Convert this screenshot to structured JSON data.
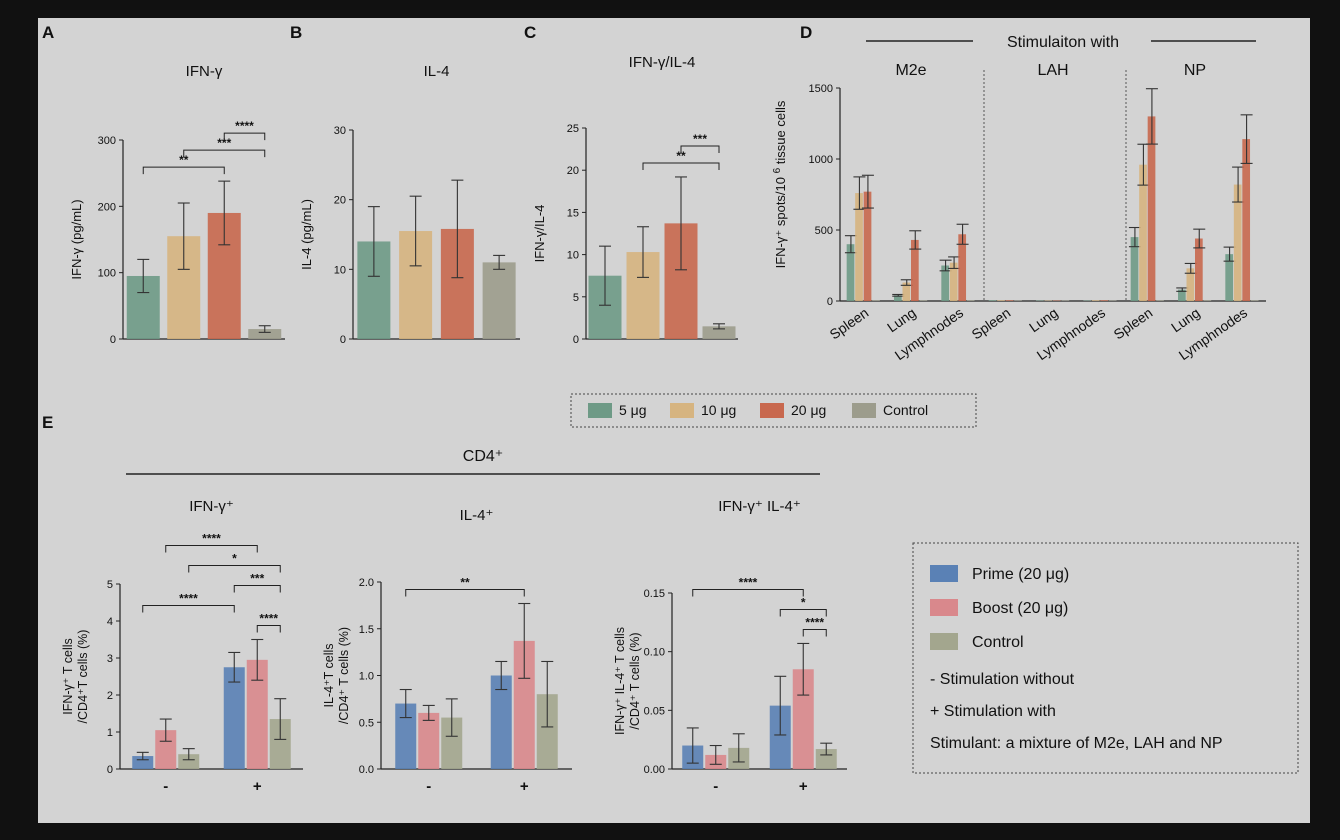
{
  "colors": {
    "g5": "#6e9a86",
    "g10": "#d6b480",
    "g20": "#c8684e",
    "gctrl": "#9c9c8c",
    "prime": "#5a81b5",
    "boost": "#d9888c",
    "ctrl2": "#a3a68e"
  },
  "panel_letters": [
    "A",
    "B",
    "C",
    "D",
    "E"
  ],
  "legend_top": {
    "items": [
      {
        "label": "5 μg",
        "color": "#6e9a86"
      },
      {
        "label": "10 μg",
        "color": "#d6b480"
      },
      {
        "label": "20 μg",
        "color": "#c8684e"
      },
      {
        "label": "Control",
        "color": "#9c9c8c"
      }
    ]
  },
  "legend_bottom": {
    "items": [
      {
        "label": "Prime (20 μg)",
        "color": "#5a81b5"
      },
      {
        "label": "Boost (20 μg)",
        "color": "#d9888c"
      },
      {
        "label": "Control",
        "color": "#a3a68e"
      }
    ],
    "notes": [
      "-  Stimulation without",
      "+ Stimulation with",
      "Stimulant: a mixture of M2e, LAH and NP"
    ]
  },
  "chart_data": [
    {
      "id": "A",
      "type": "bar",
      "title": "IFN-γ",
      "ylabel": "IFN-γ (pg/mL)",
      "ylim": [
        0,
        300
      ],
      "yticks": [
        0,
        100,
        200,
        300
      ],
      "categories": [
        "5 μg",
        "10 μg",
        "20 μg",
        "Control"
      ],
      "values": [
        95,
        155,
        190,
        15
      ],
      "errors": [
        25,
        50,
        48,
        5
      ],
      "significance": [
        {
          "a": 0,
          "b": 2,
          "label": "**"
        },
        {
          "a": 1,
          "b": 3,
          "label": "***"
        },
        {
          "a": 2,
          "b": 3,
          "label": "****"
        }
      ]
    },
    {
      "id": "B",
      "type": "bar",
      "title": "IL-4",
      "ylabel": "IL-4 (pg/mL)",
      "ylim": [
        0,
        30
      ],
      "yticks": [
        0,
        10,
        20,
        30
      ],
      "categories": [
        "5 μg",
        "10 μg",
        "20 μg",
        "Control"
      ],
      "values": [
        14,
        15.5,
        15.8,
        11
      ],
      "errors": [
        5,
        5,
        7,
        1
      ]
    },
    {
      "id": "C",
      "type": "bar",
      "title": "IFN-γ/IL-4",
      "ylabel": "IFN-γ/IL-4",
      "ylim": [
        0,
        25
      ],
      "yticks": [
        0,
        5,
        10,
        15,
        20,
        25
      ],
      "categories": [
        "5 μg",
        "10 μg",
        "20 μg",
        "Control"
      ],
      "values": [
        7.5,
        10.3,
        13.7,
        1.5
      ],
      "errors": [
        3.5,
        3,
        5.5,
        0.3
      ],
      "significance": [
        {
          "a": 1,
          "b": 3,
          "label": "**"
        },
        {
          "a": 2,
          "b": 3,
          "label": "***"
        }
      ]
    },
    {
      "id": "D",
      "type": "bar",
      "ylabel": "IFN-γ⁺ spots/10",
      "ylabel_sup": "6",
      "ylabel_tail": "tissue cells",
      "ylim": [
        0,
        1500
      ],
      "yticks": [
        0,
        500,
        1000,
        1500
      ],
      "header": "Stimulaiton with",
      "stimulants": [
        "M2e",
        "LAH",
        "NP"
      ],
      "tissues": [
        "Spleen",
        "Lung",
        "Lymphnodes"
      ],
      "series": [
        {
          "name": "5 μg",
          "values": [
            400,
            40,
            250,
            5,
            3,
            3,
            450,
            80,
            330
          ]
        },
        {
          "name": "10 μg",
          "values": [
            760,
            130,
            270,
            5,
            3,
            5,
            960,
            230,
            820
          ]
        },
        {
          "name": "20 μg",
          "values": [
            770,
            430,
            470,
            5,
            3,
            5,
            1300,
            440,
            1140
          ]
        },
        {
          "name": "Control",
          "values": [
            5,
            5,
            5,
            3,
            3,
            3,
            5,
            5,
            5
          ]
        }
      ]
    },
    {
      "id": "E1",
      "type": "bar",
      "title": "IFN-γ⁺",
      "ylabel": [
        "IFN-γ⁺ T cells",
        "/CD4⁺T cells (%)"
      ],
      "ylim": [
        0,
        5
      ],
      "yticks": [
        0,
        1,
        2,
        3,
        4,
        5
      ],
      "categories": [
        "-",
        "+"
      ],
      "series": [
        {
          "name": "Prime (20 μg)",
          "values": [
            0.35,
            2.75
          ],
          "errors": [
            0.1,
            0.4
          ]
        },
        {
          "name": "Boost (20 μg)",
          "values": [
            1.05,
            2.95
          ],
          "errors": [
            0.3,
            0.55
          ]
        },
        {
          "name": "Control",
          "values": [
            0.4,
            1.35
          ],
          "errors": [
            0.15,
            0.55
          ]
        }
      ],
      "significance": [
        {
          "a": [
            0,
            1
          ],
          "b": [
            1,
            1
          ],
          "label": "****"
        },
        {
          "a": [
            0,
            2
          ],
          "b": [
            1,
            2
          ],
          "label": "*"
        },
        {
          "a": [
            1,
            0
          ],
          "b": [
            1,
            2
          ],
          "label": "***"
        },
        {
          "a": [
            0,
            0
          ],
          "b": [
            1,
            0
          ],
          "label": "****"
        },
        {
          "a": [
            1,
            1
          ],
          "b": [
            1,
            2
          ],
          "label": "****"
        }
      ]
    },
    {
      "id": "E2",
      "type": "bar",
      "title": "IL-4⁺",
      "ylabel": [
        "IL-4⁺T cells",
        "/CD4⁺ T cells (%)"
      ],
      "ylim": [
        0,
        2.0
      ],
      "yticks": [
        0.0,
        0.5,
        1.0,
        1.5,
        2.0
      ],
      "categories": [
        "-",
        "+"
      ],
      "series": [
        {
          "name": "Prime (20 μg)",
          "values": [
            0.7,
            1.0
          ],
          "errors": [
            0.15,
            0.15
          ]
        },
        {
          "name": "Boost (20 μg)",
          "values": [
            0.6,
            1.37
          ],
          "errors": [
            0.08,
            0.4
          ]
        },
        {
          "name": "Control",
          "values": [
            0.55,
            0.8
          ],
          "errors": [
            0.2,
            0.35
          ]
        }
      ],
      "significance": [
        {
          "a": [
            0,
            0
          ],
          "b": [
            1,
            1
          ],
          "label": "**"
        }
      ]
    },
    {
      "id": "E3",
      "type": "bar",
      "title": "IFN-γ⁺ IL-4⁺",
      "ylabel": [
        "IFN-γ⁺ IL-4⁺ T cells",
        "/CD4⁺ T cells (%)"
      ],
      "ylim": [
        0,
        0.15
      ],
      "yticks": [
        0.0,
        0.05,
        0.1,
        0.15
      ],
      "categories": [
        "-",
        "+"
      ],
      "series": [
        {
          "name": "Prime (20 μg)",
          "values": [
            0.02,
            0.054
          ],
          "errors": [
            0.015,
            0.025
          ]
        },
        {
          "name": "Boost (20 μg)",
          "values": [
            0.012,
            0.085
          ],
          "errors": [
            0.008,
            0.022
          ]
        },
        {
          "name": "Control",
          "values": [
            0.018,
            0.017
          ],
          "errors": [
            0.012,
            0.005
          ]
        }
      ],
      "significance": [
        {
          "a": [
            0,
            0
          ],
          "b": [
            1,
            1
          ],
          "label": "****"
        },
        {
          "a": [
            1,
            0
          ],
          "b": [
            1,
            2
          ],
          "label": "*"
        },
        {
          "a": [
            1,
            1
          ],
          "b": [
            1,
            2
          ],
          "label": "****"
        }
      ]
    }
  ],
  "e_header": "CD4⁺"
}
